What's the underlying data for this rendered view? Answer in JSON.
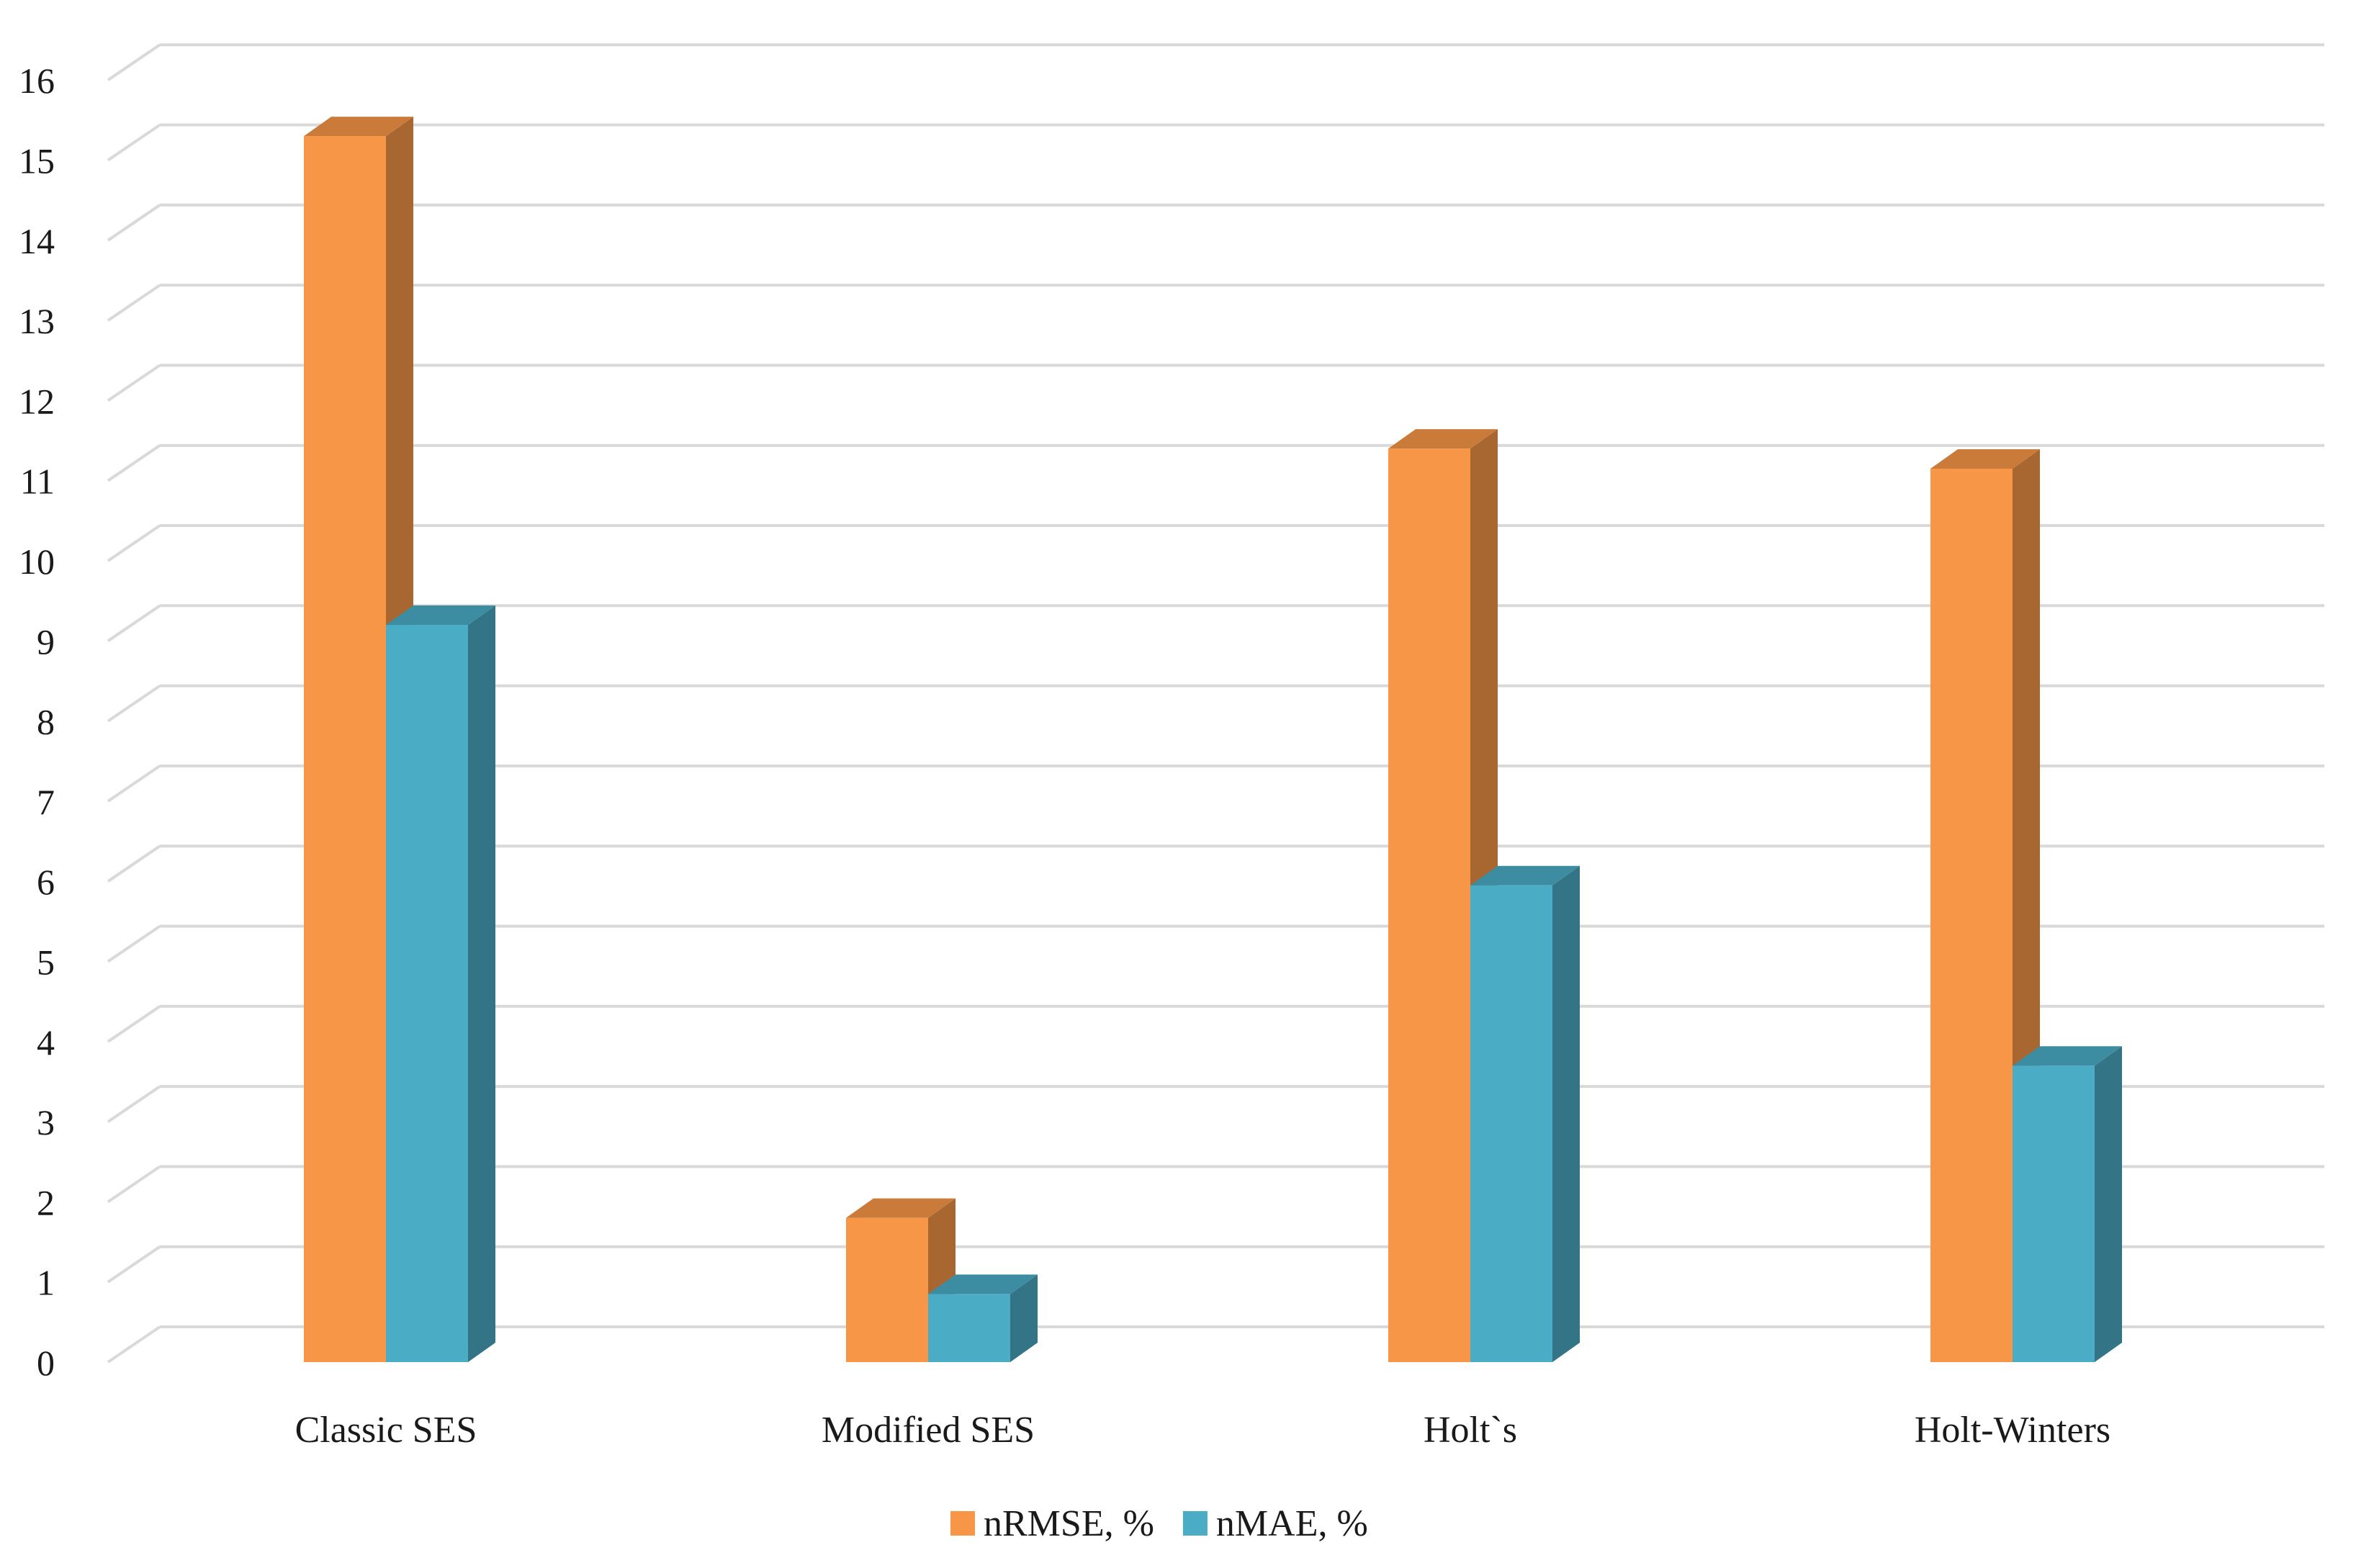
{
  "chart_data": {
    "type": "bar",
    "title": "",
    "xlabel": "",
    "ylabel": "",
    "ylim": [
      0,
      16
    ],
    "yticks": [
      0,
      1,
      2,
      3,
      4,
      5,
      6,
      7,
      8,
      9,
      10,
      11,
      12,
      13,
      14,
      15,
      16
    ],
    "grid": true,
    "legend_position": "bottom",
    "categories": [
      "Classic SES",
      "Modified SES",
      "Holt`s",
      "Holt-Winters"
    ],
    "series": [
      {
        "name": "nRMSE, %",
        "color": "#F79646",
        "values": [
          15.3,
          1.8,
          11.4,
          11.15
        ]
      },
      {
        "name": "nMAE, %",
        "color": "#4BACC6",
        "values": [
          9.2,
          0.85,
          5.95,
          3.7
        ]
      }
    ]
  }
}
